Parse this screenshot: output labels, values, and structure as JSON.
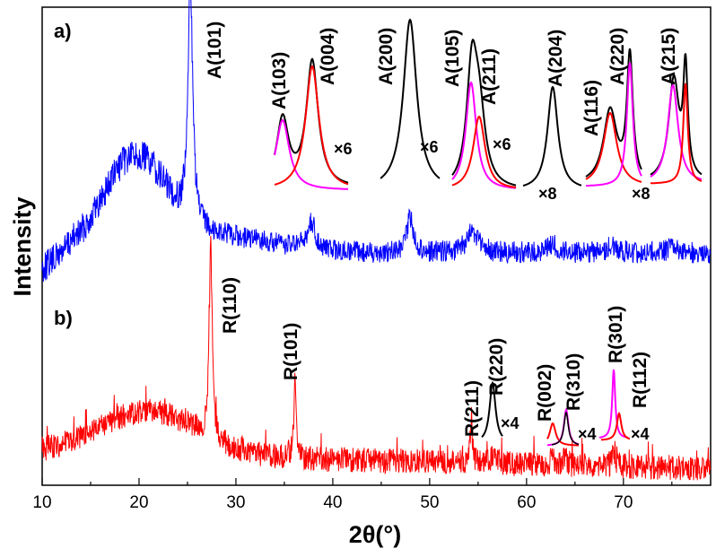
{
  "chart_data": {
    "type": "line",
    "xlabel": "2θ(°)",
    "ylabel": "Intensity",
    "xlim": [
      10,
      79
    ],
    "x_ticks": [
      10,
      20,
      30,
      40,
      50,
      60,
      70
    ],
    "x_tick_labels": [
      "10",
      "20",
      "30",
      "40",
      "50",
      "60",
      "70"
    ],
    "y_ticks_shown": false,
    "colors": {
      "a": "#0000ff",
      "b": "#ff0000",
      "fit_black": "#000000",
      "fit_red": "#ff0000",
      "fit_magenta": "#ff00ff"
    },
    "panels": [
      {
        "label": "a)",
        "color": "#0000ff",
        "peaks": [
          {
            "name": "A(101)",
            "pos": 25.3
          },
          {
            "name": "A(004)",
            "pos": 37.8
          },
          {
            "name": "A(200)",
            "pos": 48.0
          },
          {
            "name": "A(105)",
            "pos": 53.9
          },
          {
            "name": "A(211)",
            "pos": 55.1
          }
        ]
      },
      {
        "label": "b)",
        "color": "#ff0000",
        "peaks": [
          {
            "name": "R(110)",
            "pos": 27.4
          },
          {
            "name": "R(101)",
            "pos": 36.1
          },
          {
            "name": "R(211)",
            "pos": 54.3
          },
          {
            "name": "R(220)",
            "pos": 56.6
          },
          {
            "name": "R(002)",
            "pos": 62.7
          },
          {
            "name": "R(310)",
            "pos": 64.0
          },
          {
            "name": "R(301)",
            "pos": 69.0
          },
          {
            "name": "R(112)",
            "pos": 69.8
          }
        ]
      }
    ],
    "insets": [
      {
        "id": "a1",
        "panel": "a",
        "scale": "×6",
        "peaks": [
          "A(103)",
          "A(004)"
        ]
      },
      {
        "id": "a2",
        "panel": "a",
        "scale": "×6",
        "peaks": [
          "A(200)"
        ]
      },
      {
        "id": "a3",
        "panel": "a",
        "scale": "×6",
        "peaks": [
          "A(105)",
          "A(211)"
        ]
      },
      {
        "id": "a4",
        "panel": "a",
        "scale": "×8",
        "peaks": [
          "A(204)"
        ]
      },
      {
        "id": "a5",
        "panel": "a",
        "scale": "×8",
        "peaks": [
          "A(116)",
          "A(220)",
          "A(215)"
        ]
      },
      {
        "id": "b1",
        "panel": "b",
        "scale": "×4",
        "peaks": [
          "R(211)",
          "R(220)"
        ]
      },
      {
        "id": "b2",
        "panel": "b",
        "scale": "×4",
        "peaks": [
          "R(002)",
          "R(310)"
        ]
      },
      {
        "id": "b3",
        "panel": "b",
        "scale": "×4",
        "peaks": [
          "R(301)",
          "R(112)"
        ]
      }
    ]
  }
}
